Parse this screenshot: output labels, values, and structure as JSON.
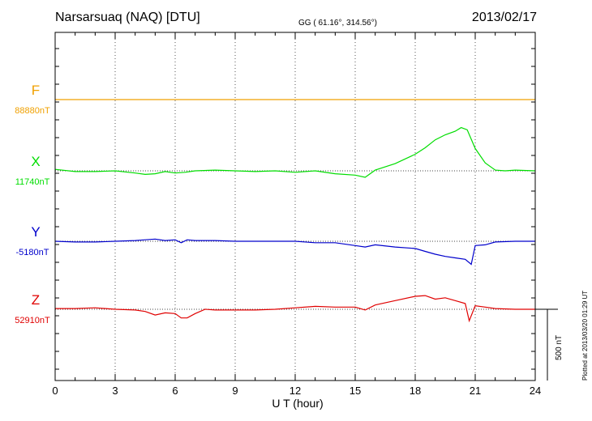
{
  "header": {
    "station": "Narsarsuaq (NAQ)  [DTU]",
    "coords": "GG ( 61.16°, 314.56°)",
    "date": "2013/02/17"
  },
  "plotted": "Plotted at 2013/03/20 01:29 UT",
  "scale_label": "500 nT",
  "chart_data": {
    "type": "line",
    "xlabel": "U T (hour)",
    "xlim": [
      0,
      24
    ],
    "xticks": [
      "0",
      "3",
      "6",
      "9",
      "12",
      "15",
      "18",
      "21",
      "24"
    ],
    "scale_nT": 500,
    "series": [
      {
        "name": "F",
        "baseline_label": "88880nT",
        "color": "#f0a000",
        "x": [
          0,
          24
        ],
        "values": [
          0,
          0
        ]
      },
      {
        "name": "X",
        "baseline_label": "11740nT",
        "color": "#00dd00",
        "x": [
          0,
          1,
          2,
          3,
          4,
          4.5,
          5,
          5.5,
          6,
          6.5,
          7,
          8,
          9,
          10,
          11,
          12,
          13,
          14,
          15,
          15.5,
          16,
          17,
          18,
          18.5,
          19,
          19.5,
          20,
          20.3,
          20.6,
          21,
          21.5,
          22,
          22.5,
          23,
          24
        ],
        "values": [
          10,
          -5,
          -5,
          0,
          -15,
          -25,
          -20,
          -5,
          -15,
          -10,
          0,
          5,
          0,
          -5,
          0,
          -10,
          0,
          -20,
          -30,
          -45,
          5,
          50,
          115,
          160,
          215,
          250,
          275,
          300,
          285,
          155,
          55,
          5,
          0,
          5,
          0
        ]
      },
      {
        "name": "Y",
        "baseline_label": "-5180nT",
        "color": "#0000cc",
        "x": [
          0,
          1,
          2,
          3,
          4,
          4.5,
          5,
          5.5,
          6,
          6.3,
          6.6,
          7,
          8,
          9,
          10,
          11,
          12,
          13,
          14,
          15,
          15.5,
          16,
          17,
          18,
          18.5,
          19,
          19.5,
          20,
          20.5,
          20.8,
          21,
          21.5,
          22,
          23,
          24
        ],
        "values": [
          0,
          -5,
          -5,
          0,
          5,
          10,
          15,
          5,
          10,
          -10,
          10,
          5,
          5,
          0,
          0,
          0,
          0,
          -10,
          -10,
          -30,
          -40,
          -25,
          -40,
          -50,
          -70,
          -90,
          -105,
          -115,
          -125,
          -160,
          -30,
          -25,
          -5,
          0,
          0
        ]
      },
      {
        "name": "Z",
        "baseline_label": "52910nT",
        "color": "#e00000",
        "x": [
          0,
          1,
          2,
          3,
          4,
          4.5,
          5,
          5.5,
          6,
          6.3,
          6.6,
          7,
          7.5,
          8,
          9,
          10,
          11,
          12,
          13,
          14,
          15,
          15.5,
          16,
          17,
          18,
          18.5,
          19,
          19.5,
          20,
          20.5,
          20.7,
          21,
          21.5,
          22,
          23,
          24
        ],
        "values": [
          5,
          5,
          10,
          0,
          -5,
          -15,
          -40,
          -25,
          -30,
          -60,
          -60,
          -30,
          0,
          -5,
          -5,
          -5,
          0,
          10,
          20,
          15,
          15,
          -5,
          30,
          60,
          90,
          95,
          70,
          80,
          60,
          40,
          -80,
          25,
          15,
          5,
          0,
          0
        ]
      }
    ],
    "baselines_y": [
      123,
      211,
      298,
      382
    ],
    "axis": {
      "x0": 68,
      "x1": 660,
      "y0": 40,
      "y1": 470,
      "px_per_nT": 0.178
    }
  }
}
